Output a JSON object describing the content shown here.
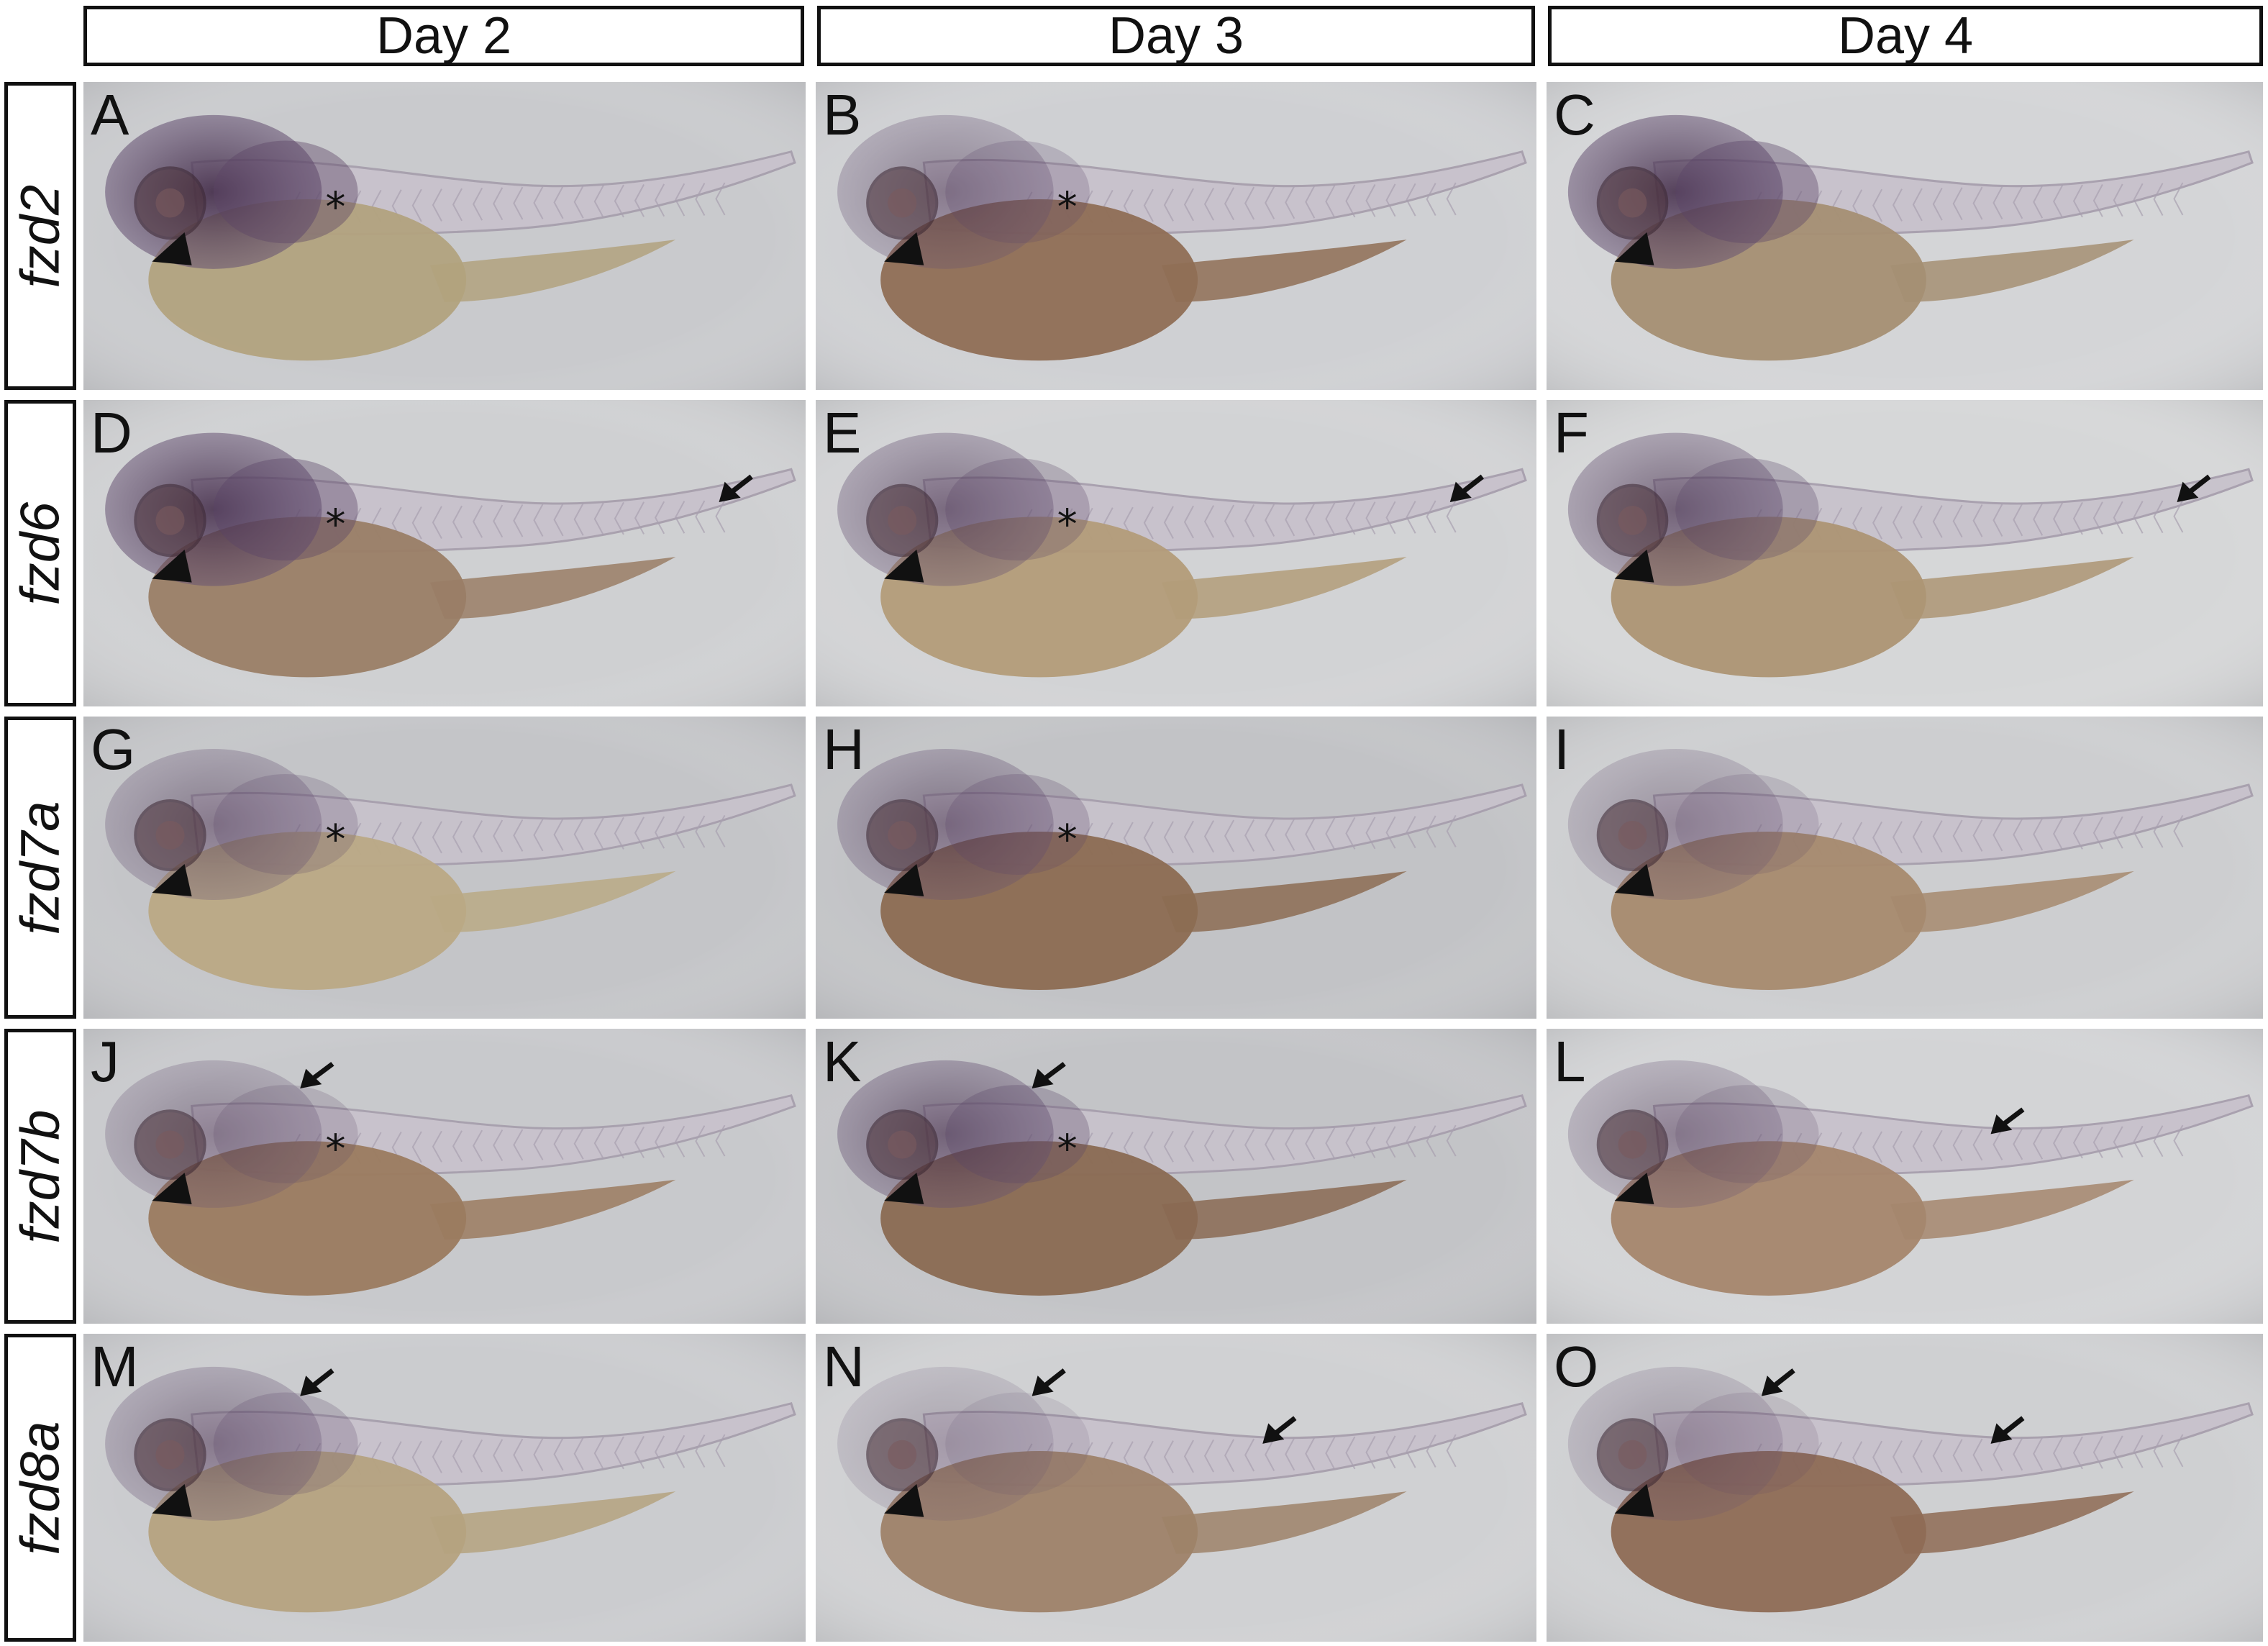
{
  "columns": [
    "Day 2",
    "Day 3",
    "Day 4"
  ],
  "rows": [
    "fzd2",
    "fzd6",
    "fzd7a",
    "fzd7b",
    "fzd8a"
  ],
  "panels": [
    {
      "letter": "A",
      "bg": "#c9cacd",
      "markers": {
        "arrowhead": true,
        "asterisk": true,
        "arrows": []
      },
      "stain": 0.85,
      "yolk": "#b2a27e"
    },
    {
      "letter": "B",
      "bg": "#cfd0d3",
      "markers": {
        "arrowhead": true,
        "asterisk": true,
        "arrows": []
      },
      "stain": 0.45,
      "yolk": "#8f6e55"
    },
    {
      "letter": "C",
      "bg": "#d4d5d7",
      "markers": {
        "arrowhead": true,
        "asterisk": false,
        "arrows": []
      },
      "stain": 0.8,
      "yolk": "#a58f73"
    },
    {
      "letter": "D",
      "bg": "#cfd0d2",
      "markers": {
        "arrowhead": true,
        "asterisk": true,
        "arrows": [
          "tail"
        ]
      },
      "stain": 0.8,
      "yolk": "#9a7e66"
    },
    {
      "letter": "E",
      "bg": "#d2d3d5",
      "markers": {
        "arrowhead": true,
        "asterisk": true,
        "arrows": [
          "tail"
        ]
      },
      "stain": 0.55,
      "yolk": "#b39c79"
    },
    {
      "letter": "F",
      "bg": "#d6d7d8",
      "markers": {
        "arrowhead": true,
        "asterisk": false,
        "arrows": [
          "tail"
        ]
      },
      "stain": 0.6,
      "yolk": "#ad9574"
    },
    {
      "letter": "G",
      "bg": "#c4c5c8",
      "markers": {
        "arrowhead": true,
        "asterisk": true,
        "arrows": []
      },
      "stain": 0.45,
      "yolk": "#baa985"
    },
    {
      "letter": "H",
      "bg": "#c2c3c6",
      "markers": {
        "arrowhead": true,
        "asterisk": true,
        "arrows": []
      },
      "stain": 0.5,
      "yolk": "#8c6c52"
    },
    {
      "letter": "I",
      "bg": "#cdced0",
      "markers": {
        "arrowhead": true,
        "asterisk": false,
        "arrows": []
      },
      "stain": 0.35,
      "yolk": "#a68a6e"
    },
    {
      "letter": "J",
      "bg": "#c8c9cc",
      "markers": {
        "arrowhead": true,
        "asterisk": true,
        "arrows": [
          "head"
        ]
      },
      "stain": 0.4,
      "yolk": "#9b7b5f"
    },
    {
      "letter": "K",
      "bg": "#c3c4c7",
      "markers": {
        "arrowhead": true,
        "asterisk": true,
        "arrows": [
          "head"
        ]
      },
      "stain": 0.6,
      "yolk": "#8a6a52"
    },
    {
      "letter": "L",
      "bg": "#d3d4d6",
      "markers": {
        "arrowhead": true,
        "asterisk": false,
        "arrows": [
          "trunk"
        ]
      },
      "stain": 0.4,
      "yolk": "#a5866d"
    },
    {
      "letter": "M",
      "bg": "#cbcccf",
      "markers": {
        "arrowhead": true,
        "asterisk": false,
        "arrows": [
          "head"
        ]
      },
      "stain": 0.45,
      "yolk": "#b5a27f"
    },
    {
      "letter": "N",
      "bg": "#d0d1d3",
      "markers": {
        "arrowhead": true,
        "asterisk": false,
        "arrows": [
          "head",
          "trunk"
        ]
      },
      "stain": 0.25,
      "yolk": "#9e8269"
    },
    {
      "letter": "O",
      "bg": "#cfd0d2",
      "markers": {
        "arrowhead": true,
        "asterisk": false,
        "arrows": [
          "head",
          "trunk"
        ]
      },
      "stain": 0.3,
      "yolk": "#8e6b55"
    }
  ]
}
